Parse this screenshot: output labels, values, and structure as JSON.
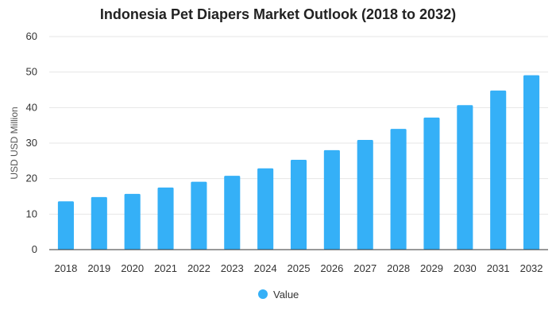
{
  "chart_data": {
    "type": "bar",
    "title": "Indonesia Pet Diapers Market Outlook (2018 to 2032)",
    "ylabel": "USD USD Million",
    "xlabel": "",
    "categories": [
      "2018",
      "2019",
      "2020",
      "2021",
      "2022",
      "2023",
      "2024",
      "2025",
      "2026",
      "2027",
      "2028",
      "2029",
      "2030",
      "2031",
      "2032"
    ],
    "series": [
      {
        "name": "Value",
        "values": [
          13.6,
          14.8,
          15.7,
          17.5,
          19.1,
          20.8,
          22.9,
          25.3,
          28.0,
          30.9,
          34.0,
          37.2,
          40.7,
          44.8,
          49.1
        ]
      }
    ],
    "ylim": [
      0,
      60
    ],
    "yticks": [
      0,
      10,
      20,
      30,
      40,
      50,
      60
    ],
    "grid": true,
    "legend_position": "bottom",
    "colors": {
      "bar": "#35b0f7",
      "grid": "#e6e6e6",
      "axis": "#333333"
    }
  }
}
